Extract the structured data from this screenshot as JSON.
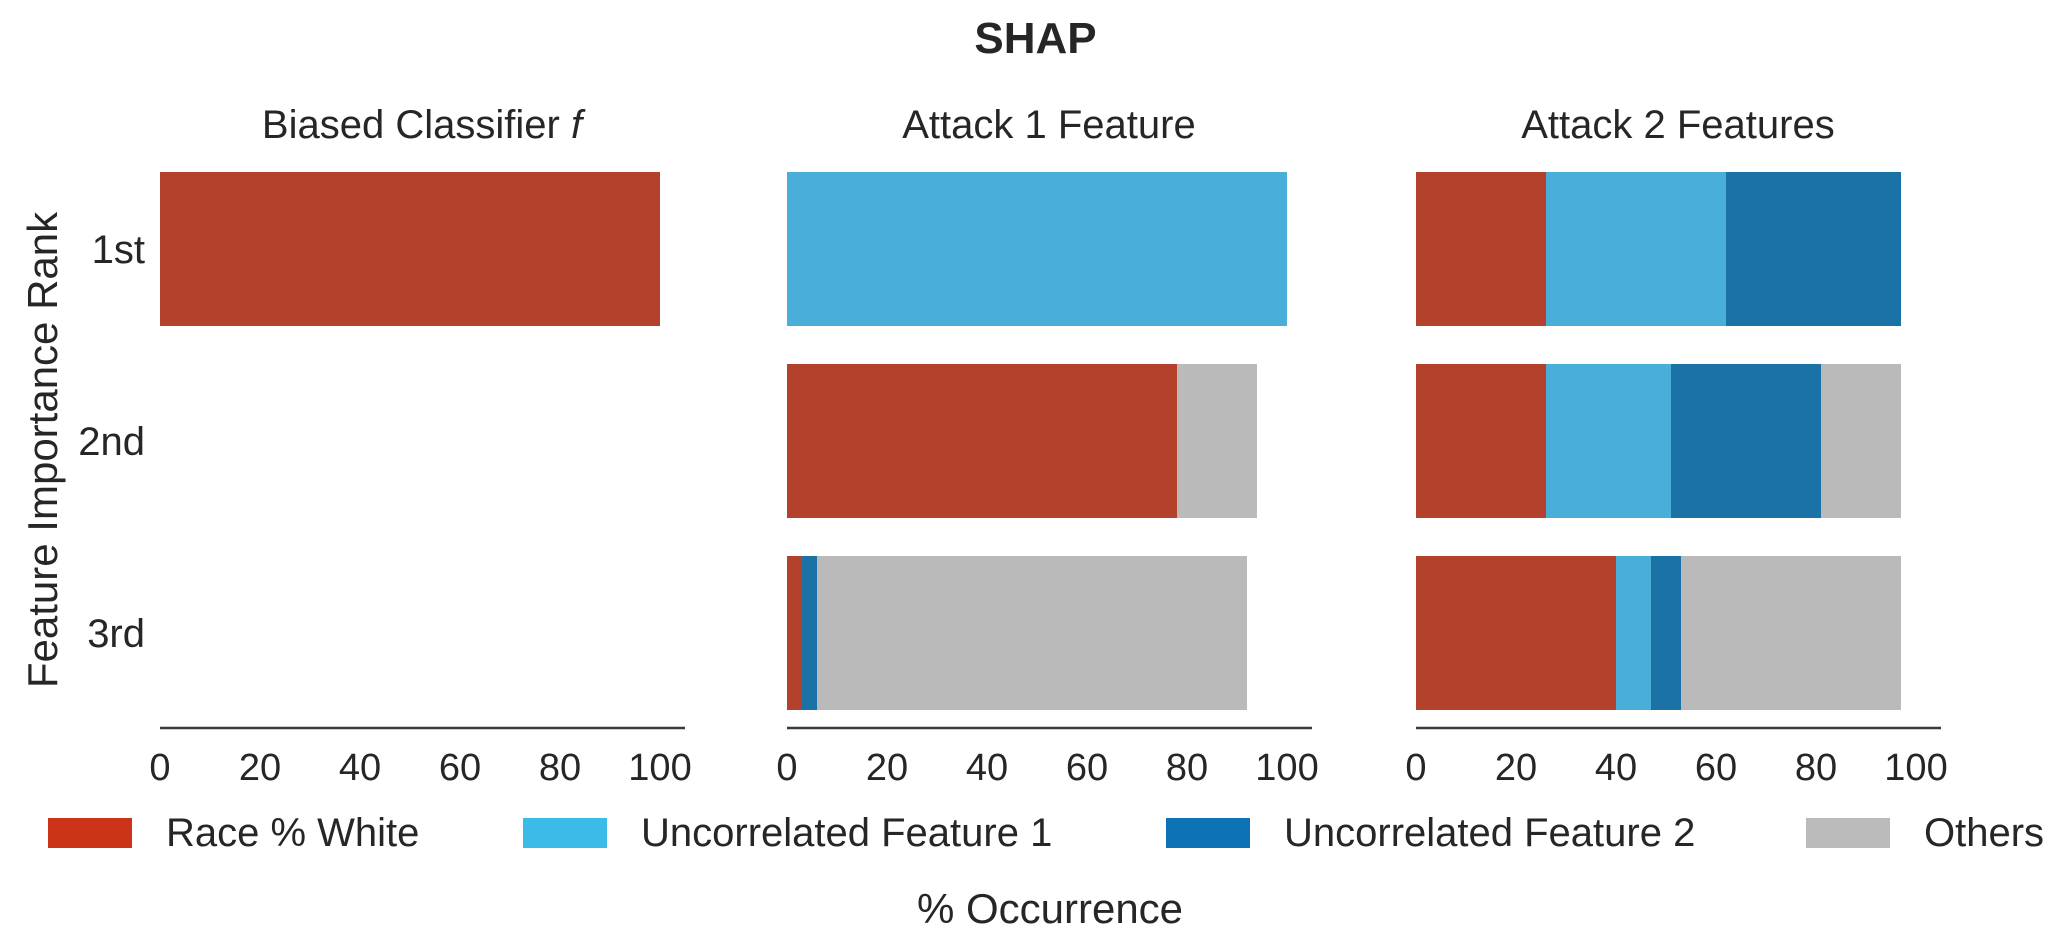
{
  "title": "SHAP",
  "xlabel": "% Occurrence",
  "ylabel": "Feature Importance Rank",
  "legend": [
    {
      "label": "Race % White",
      "color": "#cc3418"
    },
    {
      "label": "Uncorrelated Feature 1",
      "color": "#3cbbe8"
    },
    {
      "label": "Uncorrelated Feature 2",
      "color": "#0e73b6"
    },
    {
      "label": "Others",
      "color": "#bbbbbb"
    }
  ],
  "chart_data": [
    {
      "type": "bar",
      "orientation": "horizontal",
      "stacked": true,
      "title": "Biased Classifier f",
      "title_main": "Biased Classifier ",
      "title_italic": "f",
      "categories": [
        "1st",
        "2nd",
        "3rd"
      ],
      "xlim": [
        0,
        105
      ],
      "xticks": [
        "0",
        "20",
        "40",
        "60",
        "80",
        "100"
      ],
      "series": [
        {
          "name": "Race % White",
          "color": "#b4412b",
          "values": [
            100,
            0,
            0
          ]
        },
        {
          "name": "Uncorrelated Feature 1",
          "color": "#4aafd8",
          "values": [
            0,
            0,
            0
          ]
        },
        {
          "name": "Uncorrelated Feature 2",
          "color": "#1a72a6",
          "values": [
            0,
            0,
            0
          ]
        },
        {
          "name": "Others",
          "color": "#bababa",
          "values": [
            0,
            0,
            0
          ]
        }
      ]
    },
    {
      "type": "bar",
      "orientation": "horizontal",
      "stacked": true,
      "title": "Attack 1 Feature",
      "categories": [
        "1st",
        "2nd",
        "3rd"
      ],
      "xlim": [
        0,
        105
      ],
      "xticks": [
        "0",
        "20",
        "40",
        "60",
        "80",
        "100"
      ],
      "series": [
        {
          "name": "Race % White",
          "color": "#b4412b",
          "values": [
            0,
            78,
            3
          ]
        },
        {
          "name": "Uncorrelated Feature 1",
          "color": "#4aafd8",
          "values": [
            100,
            0,
            0
          ]
        },
        {
          "name": "Uncorrelated Feature 2",
          "color": "#1a72a6",
          "values": [
            0,
            0,
            3
          ]
        },
        {
          "name": "Others",
          "color": "#bababa",
          "values": [
            0,
            16,
            86
          ]
        }
      ]
    },
    {
      "type": "bar",
      "orientation": "horizontal",
      "stacked": true,
      "title": "Attack 2 Features",
      "categories": [
        "1st",
        "2nd",
        "3rd"
      ],
      "xlim": [
        0,
        105
      ],
      "xticks": [
        "0",
        "20",
        "40",
        "60",
        "80",
        "100"
      ],
      "series": [
        {
          "name": "Race % White",
          "color": "#b4412b",
          "values": [
            26,
            26,
            40
          ]
        },
        {
          "name": "Uncorrelated Feature 1",
          "color": "#4aafd8",
          "values": [
            36,
            25,
            7
          ]
        },
        {
          "name": "Uncorrelated Feature 2",
          "color": "#1a72a6",
          "values": [
            35,
            30,
            6
          ]
        },
        {
          "name": "Others",
          "color": "#bababa",
          "values": [
            0,
            16,
            44
          ]
        }
      ]
    }
  ]
}
